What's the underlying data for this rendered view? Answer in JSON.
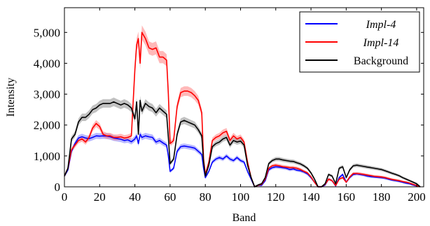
{
  "chart_data": {
    "type": "line",
    "xlabel": "Band",
    "ylabel": "Intensity",
    "xlim": [
      0,
      204
    ],
    "ylim": [
      0,
      5800
    ],
    "x_ticks": [
      0,
      20,
      40,
      60,
      80,
      100,
      120,
      140,
      160,
      180,
      200
    ],
    "y_ticks": [
      0,
      1000,
      2000,
      3000,
      4000,
      5000
    ],
    "y_tick_labels": [
      "0",
      "1,000",
      "2,000",
      "3,000",
      "4,000",
      "5,000"
    ],
    "legend_position": "top-right",
    "grid": false,
    "series": [
      {
        "name": "Impl-4",
        "color": "#0000ff",
        "band_color": "#8080ff",
        "italic": true,
        "points": [
          [
            0,
            350
          ],
          [
            2,
            550
          ],
          [
            4,
            1150
          ],
          [
            6,
            1400
          ],
          [
            8,
            1580
          ],
          [
            10,
            1620
          ],
          [
            12,
            1580
          ],
          [
            14,
            1560
          ],
          [
            16,
            1600
          ],
          [
            18,
            1650
          ],
          [
            20,
            1640
          ],
          [
            22,
            1650
          ],
          [
            24,
            1640
          ],
          [
            26,
            1620
          ],
          [
            28,
            1580
          ],
          [
            30,
            1560
          ],
          [
            32,
            1540
          ],
          [
            34,
            1500
          ],
          [
            36,
            1520
          ],
          [
            38,
            1460
          ],
          [
            40,
            1550
          ],
          [
            41,
            1650
          ],
          [
            42,
            1400
          ],
          [
            43,
            1700
          ],
          [
            44,
            1600
          ],
          [
            46,
            1650
          ],
          [
            48,
            1620
          ],
          [
            50,
            1600
          ],
          [
            52,
            1450
          ],
          [
            54,
            1500
          ],
          [
            56,
            1420
          ],
          [
            58,
            1350
          ],
          [
            59,
            1000
          ],
          [
            60,
            500
          ],
          [
            62,
            600
          ],
          [
            64,
            1150
          ],
          [
            66,
            1300
          ],
          [
            68,
            1320
          ],
          [
            70,
            1300
          ],
          [
            72,
            1280
          ],
          [
            74,
            1250
          ],
          [
            76,
            1150
          ],
          [
            78,
            1050
          ],
          [
            79,
            600
          ],
          [
            80,
            300
          ],
          [
            82,
            500
          ],
          [
            84,
            800
          ],
          [
            86,
            900
          ],
          [
            88,
            950
          ],
          [
            90,
            900
          ],
          [
            92,
            1000
          ],
          [
            94,
            900
          ],
          [
            96,
            850
          ],
          [
            98,
            950
          ],
          [
            100,
            850
          ],
          [
            102,
            800
          ],
          [
            104,
            500
          ],
          [
            106,
            250
          ],
          [
            108,
            0
          ],
          [
            110,
            50
          ],
          [
            112,
            50
          ],
          [
            114,
            200
          ],
          [
            116,
            550
          ],
          [
            118,
            620
          ],
          [
            120,
            650
          ],
          [
            122,
            640
          ],
          [
            124,
            620
          ],
          [
            126,
            600
          ],
          [
            128,
            560
          ],
          [
            130,
            580
          ],
          [
            132,
            540
          ],
          [
            134,
            520
          ],
          [
            136,
            480
          ],
          [
            138,
            420
          ],
          [
            140,
            300
          ],
          [
            142,
            150
          ],
          [
            144,
            0
          ],
          [
            146,
            0
          ],
          [
            148,
            60
          ],
          [
            150,
            250
          ],
          [
            152,
            200
          ],
          [
            154,
            30
          ],
          [
            156,
            300
          ],
          [
            158,
            400
          ],
          [
            160,
            150
          ],
          [
            162,
            300
          ],
          [
            164,
            400
          ],
          [
            166,
            420
          ],
          [
            168,
            400
          ],
          [
            170,
            380
          ],
          [
            172,
            350
          ],
          [
            174,
            330
          ],
          [
            176,
            320
          ],
          [
            178,
            310
          ],
          [
            180,
            300
          ],
          [
            182,
            280
          ],
          [
            184,
            250
          ],
          [
            186,
            220
          ],
          [
            188,
            200
          ],
          [
            190,
            180
          ],
          [
            192,
            150
          ],
          [
            194,
            120
          ],
          [
            196,
            100
          ],
          [
            198,
            60
          ],
          [
            200,
            30
          ],
          [
            202,
            0
          ]
        ]
      },
      {
        "name": "Impl-14",
        "color": "#ff0000",
        "band_color": "#ff8080",
        "italic": true,
        "points": [
          [
            0,
            350
          ],
          [
            2,
            600
          ],
          [
            4,
            1200
          ],
          [
            6,
            1350
          ],
          [
            8,
            1500
          ],
          [
            10,
            1550
          ],
          [
            12,
            1450
          ],
          [
            14,
            1600
          ],
          [
            16,
            1900
          ],
          [
            18,
            2050
          ],
          [
            20,
            1950
          ],
          [
            22,
            1700
          ],
          [
            24,
            1650
          ],
          [
            26,
            1650
          ],
          [
            28,
            1600
          ],
          [
            30,
            1600
          ],
          [
            32,
            1620
          ],
          [
            34,
            1580
          ],
          [
            36,
            1600
          ],
          [
            38,
            1650
          ],
          [
            40,
            3800
          ],
          [
            41,
            4600
          ],
          [
            42,
            4800
          ],
          [
            43,
            4000
          ],
          [
            44,
            5000
          ],
          [
            46,
            4800
          ],
          [
            48,
            4500
          ],
          [
            50,
            4450
          ],
          [
            52,
            4500
          ],
          [
            54,
            4200
          ],
          [
            56,
            4200
          ],
          [
            58,
            4100
          ],
          [
            59,
            3000
          ],
          [
            60,
            1400
          ],
          [
            62,
            1500
          ],
          [
            64,
            2600
          ],
          [
            66,
            3050
          ],
          [
            68,
            3100
          ],
          [
            70,
            3100
          ],
          [
            72,
            3050
          ],
          [
            74,
            2950
          ],
          [
            76,
            2800
          ],
          [
            78,
            2400
          ],
          [
            79,
            900
          ],
          [
            80,
            400
          ],
          [
            82,
            800
          ],
          [
            84,
            1500
          ],
          [
            86,
            1600
          ],
          [
            88,
            1650
          ],
          [
            90,
            1750
          ],
          [
            92,
            1800
          ],
          [
            94,
            1500
          ],
          [
            96,
            1650
          ],
          [
            98,
            1550
          ],
          [
            100,
            1600
          ],
          [
            102,
            1450
          ],
          [
            104,
            800
          ],
          [
            106,
            300
          ],
          [
            108,
            0
          ],
          [
            110,
            50
          ],
          [
            112,
            80
          ],
          [
            114,
            250
          ],
          [
            116,
            600
          ],
          [
            118,
            680
          ],
          [
            120,
            700
          ],
          [
            122,
            680
          ],
          [
            124,
            650
          ],
          [
            126,
            640
          ],
          [
            128,
            620
          ],
          [
            130,
            620
          ],
          [
            132,
            600
          ],
          [
            134,
            560
          ],
          [
            136,
            500
          ],
          [
            138,
            450
          ],
          [
            140,
            320
          ],
          [
            142,
            150
          ],
          [
            144,
            0
          ],
          [
            146,
            0
          ],
          [
            148,
            80
          ],
          [
            150,
            250
          ],
          [
            152,
            200
          ],
          [
            154,
            40
          ],
          [
            156,
            250
          ],
          [
            158,
            300
          ],
          [
            160,
            150
          ],
          [
            162,
            320
          ],
          [
            164,
            430
          ],
          [
            166,
            430
          ],
          [
            168,
            420
          ],
          [
            170,
            400
          ],
          [
            172,
            380
          ],
          [
            174,
            360
          ],
          [
            176,
            340
          ],
          [
            178,
            330
          ],
          [
            180,
            320
          ],
          [
            182,
            300
          ],
          [
            184,
            270
          ],
          [
            186,
            240
          ],
          [
            188,
            220
          ],
          [
            190,
            200
          ],
          [
            192,
            170
          ],
          [
            194,
            150
          ],
          [
            196,
            120
          ],
          [
            198,
            80
          ],
          [
            200,
            40
          ],
          [
            202,
            0
          ]
        ]
      },
      {
        "name": "Background",
        "color": "#000000",
        "band_color": "#909090",
        "italic": false,
        "points": [
          [
            0,
            350
          ],
          [
            2,
            600
          ],
          [
            4,
            1550
          ],
          [
            6,
            1700
          ],
          [
            8,
            2100
          ],
          [
            10,
            2250
          ],
          [
            12,
            2250
          ],
          [
            14,
            2350
          ],
          [
            16,
            2500
          ],
          [
            18,
            2550
          ],
          [
            20,
            2650
          ],
          [
            22,
            2700
          ],
          [
            24,
            2700
          ],
          [
            26,
            2700
          ],
          [
            28,
            2750
          ],
          [
            30,
            2700
          ],
          [
            32,
            2650
          ],
          [
            34,
            2700
          ],
          [
            36,
            2650
          ],
          [
            38,
            2550
          ],
          [
            40,
            2200
          ],
          [
            41,
            2750
          ],
          [
            42,
            1700
          ],
          [
            43,
            2800
          ],
          [
            44,
            2450
          ],
          [
            46,
            2700
          ],
          [
            48,
            2600
          ],
          [
            50,
            2550
          ],
          [
            52,
            2400
          ],
          [
            54,
            2550
          ],
          [
            56,
            2450
          ],
          [
            58,
            2350
          ],
          [
            59,
            1600
          ],
          [
            60,
            750
          ],
          [
            62,
            900
          ],
          [
            64,
            1700
          ],
          [
            66,
            2100
          ],
          [
            68,
            2150
          ],
          [
            70,
            2100
          ],
          [
            72,
            2050
          ],
          [
            74,
            2000
          ],
          [
            76,
            1850
          ],
          [
            78,
            1650
          ],
          [
            79,
            800
          ],
          [
            80,
            350
          ],
          [
            82,
            700
          ],
          [
            84,
            1300
          ],
          [
            86,
            1400
          ],
          [
            88,
            1450
          ],
          [
            90,
            1550
          ],
          [
            92,
            1600
          ],
          [
            94,
            1350
          ],
          [
            96,
            1500
          ],
          [
            98,
            1450
          ],
          [
            100,
            1480
          ],
          [
            102,
            1350
          ],
          [
            104,
            700
          ],
          [
            106,
            300
          ],
          [
            108,
            0
          ],
          [
            110,
            60
          ],
          [
            112,
            100
          ],
          [
            114,
            300
          ],
          [
            116,
            750
          ],
          [
            118,
            850
          ],
          [
            120,
            900
          ],
          [
            122,
            900
          ],
          [
            124,
            870
          ],
          [
            126,
            850
          ],
          [
            128,
            830
          ],
          [
            130,
            820
          ],
          [
            132,
            780
          ],
          [
            134,
            740
          ],
          [
            136,
            680
          ],
          [
            138,
            600
          ],
          [
            140,
            450
          ],
          [
            142,
            250
          ],
          [
            144,
            0
          ],
          [
            146,
            0
          ],
          [
            148,
            100
          ],
          [
            150,
            400
          ],
          [
            152,
            350
          ],
          [
            154,
            100
          ],
          [
            156,
            600
          ],
          [
            158,
            650
          ],
          [
            160,
            300
          ],
          [
            162,
            550
          ],
          [
            164,
            680
          ],
          [
            166,
            700
          ],
          [
            168,
            680
          ],
          [
            170,
            660
          ],
          [
            172,
            640
          ],
          [
            174,
            620
          ],
          [
            176,
            600
          ],
          [
            178,
            580
          ],
          [
            180,
            560
          ],
          [
            182,
            520
          ],
          [
            184,
            480
          ],
          [
            186,
            440
          ],
          [
            188,
            400
          ],
          [
            190,
            360
          ],
          [
            192,
            300
          ],
          [
            194,
            250
          ],
          [
            196,
            200
          ],
          [
            198,
            150
          ],
          [
            200,
            100
          ],
          [
            202,
            0
          ]
        ]
      }
    ]
  }
}
